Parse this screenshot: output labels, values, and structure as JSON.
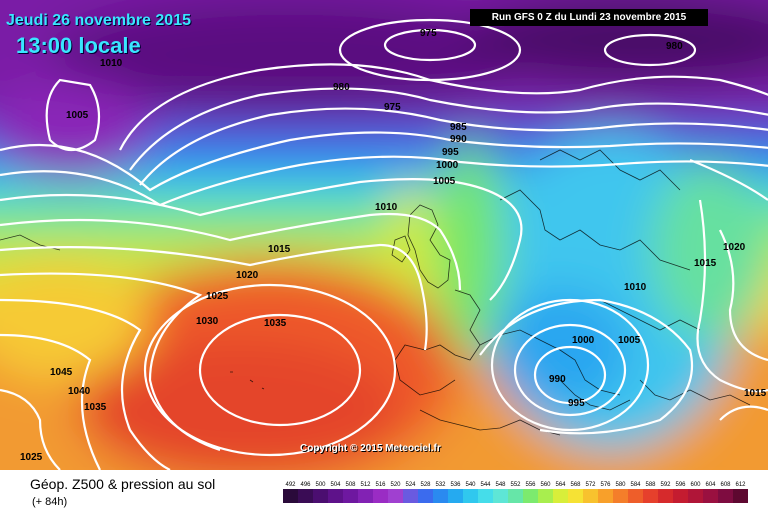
{
  "header": {
    "date": "Jeudi 26 novembre 2015",
    "time": "13:00 locale",
    "run": "Run GFS 0 Z du Lundi 23 novembre 2015"
  },
  "copyright": "Copyright © 2015 Meteociel.fr",
  "legend": {
    "title": "Géop. Z500 & pression au sol",
    "subtitle": "(+ 84h)",
    "values": [
      "492",
      "496",
      "500",
      "504",
      "508",
      "512",
      "516",
      "520",
      "524",
      "528",
      "532",
      "536",
      "540",
      "544",
      "548",
      "552",
      "556",
      "560",
      "564",
      "568",
      "572",
      "576",
      "580",
      "584",
      "588",
      "592",
      "596",
      "600",
      "604",
      "608",
      "612"
    ],
    "colors": [
      "#2a0a3a",
      "#3a0c55",
      "#4b0e70",
      "#5e128a",
      "#6e18a0",
      "#8222b4",
      "#9a2cc4",
      "#a040d0",
      "#6a5ae0",
      "#3b6bee",
      "#2a8af0",
      "#25aaf0",
      "#30c8ee",
      "#45ddea",
      "#5ee6d6",
      "#66e6a8",
      "#7cea6e",
      "#a8ee4e",
      "#d8ee3a",
      "#f6e234",
      "#f8c22e",
      "#f8a02a",
      "#f47e2a",
      "#ee5e2a",
      "#e6402c",
      "#d62a2c",
      "#c41c30",
      "#b01538",
      "#9a1040",
      "#7e0c40",
      "#5e0830"
    ]
  },
  "isobar_labels": [
    "1010",
    "1005",
    "975",
    "980",
    "975",
    "980",
    "985",
    "990",
    "995",
    "1000",
    "1005",
    "1010",
    "1015",
    "1020",
    "1025",
    "1030",
    "1035",
    "1045",
    "1040",
    "1035",
    "1025",
    "1020",
    "1015",
    "1010",
    "1000",
    "1005",
    "990",
    "995",
    "1015"
  ]
}
